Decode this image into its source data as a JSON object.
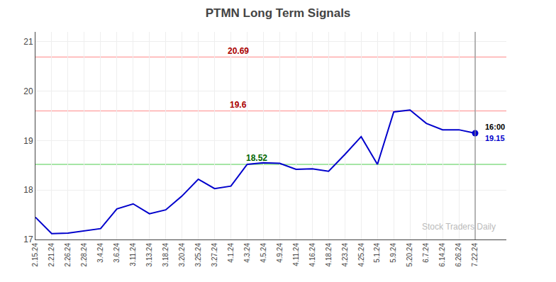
{
  "chart_data": {
    "type": "line",
    "title": "PTMN Long Term Signals",
    "categories": [
      "2.15.24",
      "2.21.24",
      "2.26.24",
      "2.28.24",
      "3.4.24",
      "3.6.24",
      "3.11.24",
      "3.13.24",
      "3.18.24",
      "3.20.24",
      "3.25.24",
      "3.27.24",
      "4.1.24",
      "4.3.24",
      "4.5.24",
      "4.9.24",
      "4.11.24",
      "4.16.24",
      "4.18.24",
      "4.23.24",
      "4.25.24",
      "5.1.24",
      "5.9.24",
      "5.20.24",
      "6.7.24",
      "6.14.24",
      "6.26.24",
      "7.22.24"
    ],
    "values": [
      17.45,
      17.12,
      17.13,
      17.18,
      17.22,
      17.62,
      17.72,
      17.52,
      17.6,
      17.88,
      18.22,
      18.03,
      18.08,
      18.52,
      18.55,
      18.54,
      18.42,
      18.43,
      18.38,
      18.72,
      19.08,
      18.52,
      19.58,
      19.62,
      19.35,
      19.22,
      19.22,
      19.15
    ],
    "color": "#0000cc",
    "ylim": [
      17.0,
      21.2
    ],
    "yticks": [
      17,
      18,
      19,
      20,
      21
    ],
    "grid": true,
    "hlines": [
      {
        "value": 18.52,
        "label": "18.52",
        "color": "#88dd88",
        "label_color": "#006600"
      },
      {
        "value": 19.6,
        "label": "19.6",
        "color": "#ffaaaa",
        "label_color": "#aa0000"
      },
      {
        "value": 20.69,
        "label": "20.69",
        "color": "#ffaaaa",
        "label_color": "#aa0000"
      }
    ],
    "vline": {
      "category": "7.22.24",
      "color": "#888888"
    },
    "annotations": [
      {
        "text": "16:00",
        "color": "#000000"
      },
      {
        "text": "19.15",
        "color": "#0000cc"
      }
    ],
    "watermark": {
      "text": "Stock Traders Daily",
      "color": "#bbbbbb"
    }
  }
}
